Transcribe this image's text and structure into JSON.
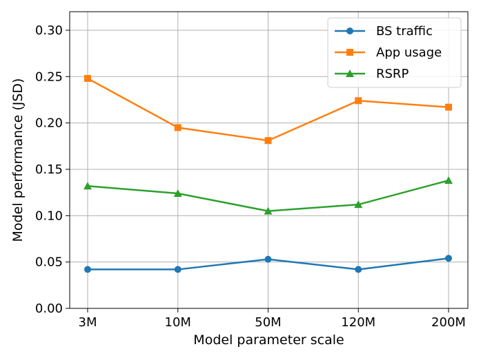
{
  "chart_data": {
    "type": "line",
    "title": "",
    "xlabel": "Model parameter scale",
    "ylabel": "Model performance (JSD)",
    "categories": [
      "3M",
      "10M",
      "50M",
      "120M",
      "200M"
    ],
    "ylim": [
      0.0,
      0.32
    ],
    "yticks": [
      "0.00",
      "0.05",
      "0.10",
      "0.15",
      "0.20",
      "0.25",
      "0.30"
    ],
    "grid": true,
    "legend_position": "top-right",
    "series": [
      {
        "name": "BS traffic",
        "color": "#1f77b4",
        "marker": "circle",
        "values": [
          0.042,
          0.042,
          0.053,
          0.042,
          0.054
        ]
      },
      {
        "name": "App usage",
        "color": "#ff7f0e",
        "marker": "square",
        "values": [
          0.248,
          0.195,
          0.181,
          0.224,
          0.217
        ]
      },
      {
        "name": "RSRP",
        "color": "#2ca02c",
        "marker": "triangle",
        "values": [
          0.132,
          0.124,
          0.105,
          0.112,
          0.138
        ]
      }
    ]
  }
}
